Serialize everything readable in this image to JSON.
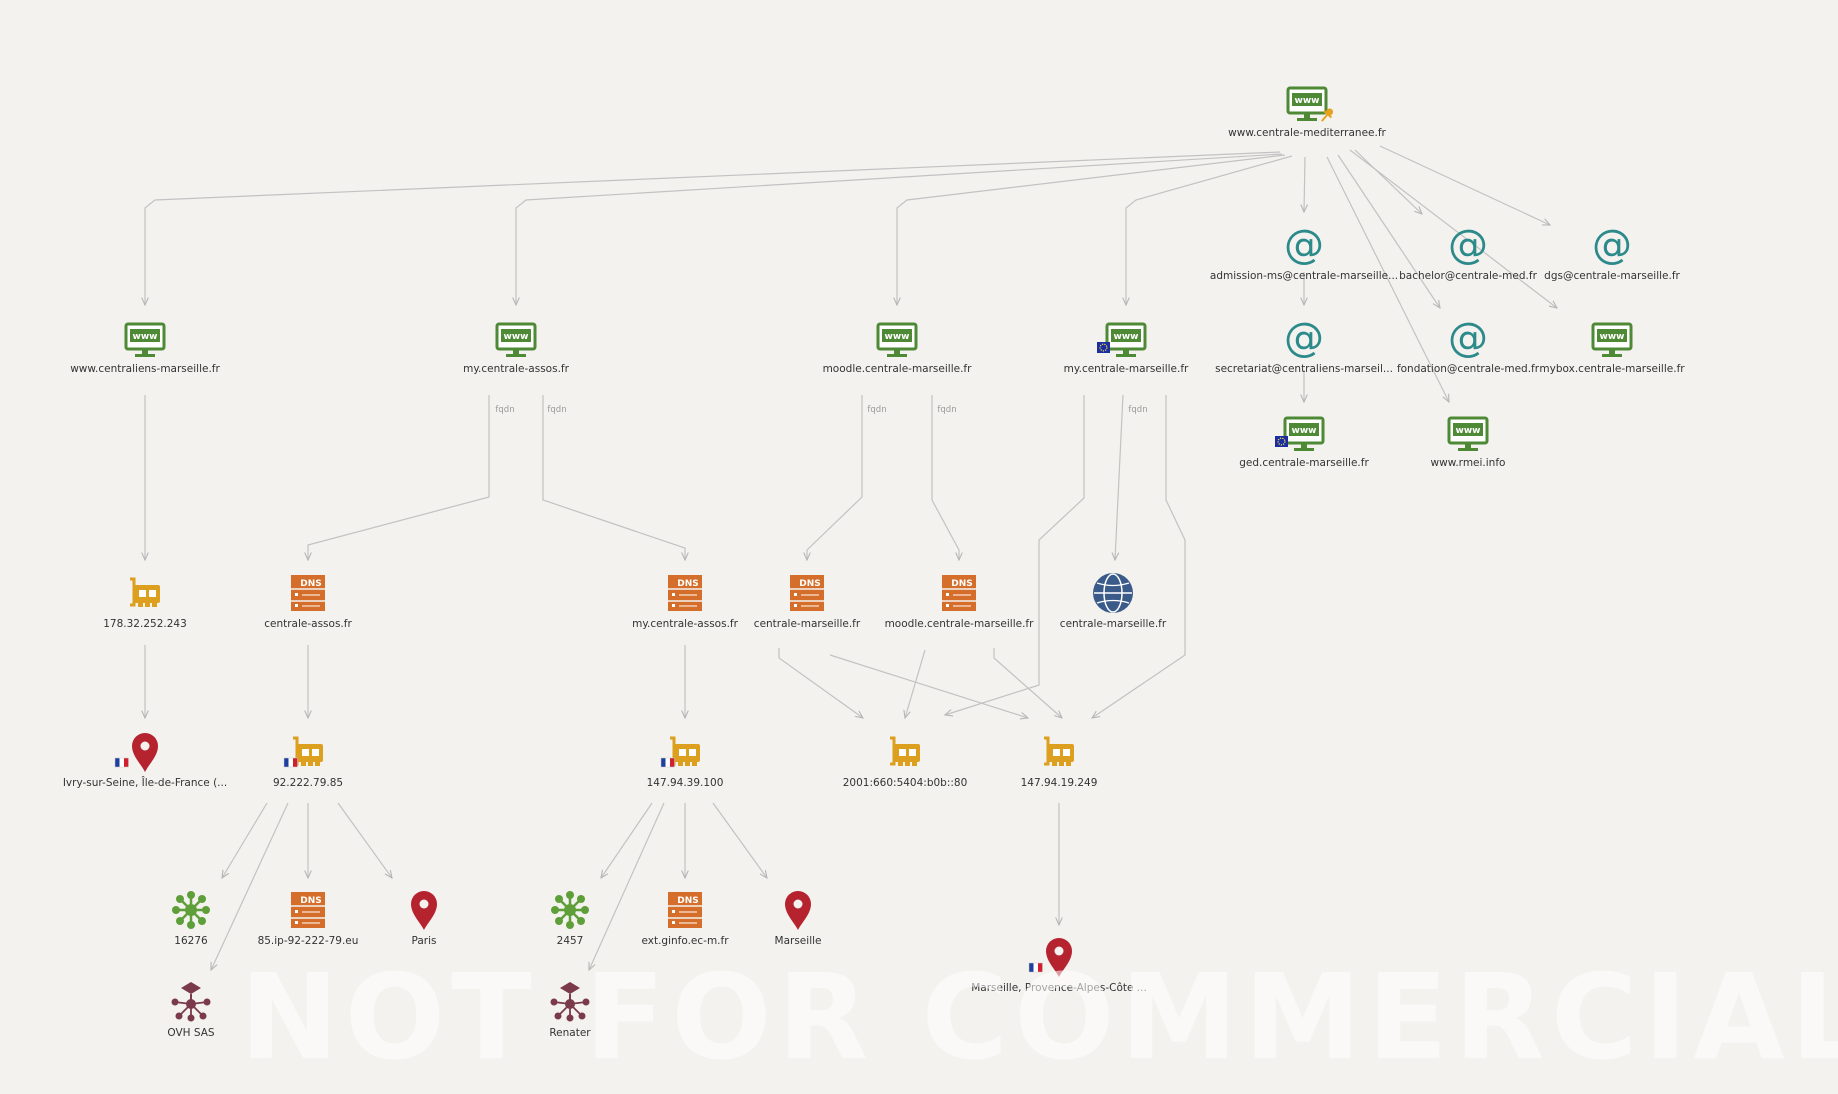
{
  "watermark": "NOT FOR COMMERCIAL USE",
  "colors": {
    "website": "#4e8a35",
    "email": "#2c8a8a",
    "dns": "#d46e2a",
    "ip": "#dd9f1e",
    "location": "#b5232f",
    "asn": "#5f9f3a",
    "org": "#7a3a4a",
    "domain": "#3a5a8a",
    "edge": "#c2c2c2"
  },
  "edge_label": "fqdn",
  "nodes": [
    {
      "id": "root",
      "type": "website",
      "label": "www.centrale-mediterranee.fr",
      "pin": true
    },
    {
      "id": "w1",
      "type": "website",
      "label": "www.centraliens-marseille.fr"
    },
    {
      "id": "w2",
      "type": "website",
      "label": "my.centrale-assos.fr"
    },
    {
      "id": "w3",
      "type": "website",
      "label": "moodle.centrale-marseille.fr"
    },
    {
      "id": "w4",
      "type": "website",
      "label": "my.centrale-marseille.fr",
      "flag": "eu"
    },
    {
      "id": "e1",
      "type": "email",
      "label": "admission-ms@centrale-marseille..."
    },
    {
      "id": "e2",
      "type": "email",
      "label": "bachelor@centrale-med.fr"
    },
    {
      "id": "e3",
      "type": "email",
      "label": "dgs@centrale-marseille.fr"
    },
    {
      "id": "e4",
      "type": "email",
      "label": "secretariat@centraliens-marseil..."
    },
    {
      "id": "e5",
      "type": "email",
      "label": "fondation@centrale-med.fr"
    },
    {
      "id": "w5",
      "type": "website",
      "label": "mybox.centrale-marseille.fr"
    },
    {
      "id": "w6",
      "type": "website",
      "label": "ged.centrale-marseille.fr",
      "flag": "eu"
    },
    {
      "id": "w7",
      "type": "website",
      "label": "www.rmei.info"
    },
    {
      "id": "ip1",
      "type": "ip",
      "label": "178.32.252.243"
    },
    {
      "id": "d1",
      "type": "dns",
      "label": "centrale-assos.fr"
    },
    {
      "id": "d2",
      "type": "dns",
      "label": "my.centrale-assos.fr"
    },
    {
      "id": "d3",
      "type": "dns",
      "label": "centrale-marseille.fr"
    },
    {
      "id": "d4",
      "type": "dns",
      "label": "moodle.centrale-marseille.fr"
    },
    {
      "id": "dom1",
      "type": "domain",
      "label": "centrale-marseille.fr"
    },
    {
      "id": "loc1",
      "type": "location",
      "label": "Ivry-sur-Seine, Île-de-France (...",
      "flag": "fr"
    },
    {
      "id": "ip2",
      "type": "ip",
      "label": "92.222.79.85",
      "flag": "fr"
    },
    {
      "id": "ip3",
      "type": "ip",
      "label": "147.94.39.100",
      "flag": "fr"
    },
    {
      "id": "ip4",
      "type": "ip",
      "label": "2001:660:5404:b0b::80"
    },
    {
      "id": "ip5",
      "type": "ip",
      "label": "147.94.19.249"
    },
    {
      "id": "as1",
      "type": "asn",
      "label": "16276"
    },
    {
      "id": "d5",
      "type": "dns",
      "label": "85.ip-92-222-79.eu"
    },
    {
      "id": "loc2",
      "type": "location",
      "label": "Paris"
    },
    {
      "id": "as2",
      "type": "asn",
      "label": "2457"
    },
    {
      "id": "d6",
      "type": "dns",
      "label": "ext.ginfo.ec-m.fr"
    },
    {
      "id": "loc3",
      "type": "location",
      "label": "Marseille"
    },
    {
      "id": "loc4",
      "type": "location",
      "label": "Marseille, Provence-Alpes-Côte ...",
      "flag": "fr"
    },
    {
      "id": "org1",
      "type": "org",
      "label": "OVH SAS"
    },
    {
      "id": "org2",
      "type": "org",
      "label": "Renater"
    }
  ],
  "edges": [
    {
      "from": "root",
      "to": "w1"
    },
    {
      "from": "root",
      "to": "w2"
    },
    {
      "from": "root",
      "to": "w3"
    },
    {
      "from": "root",
      "to": "w4"
    },
    {
      "from": "root",
      "to": "e1"
    },
    {
      "from": "root",
      "to": "e2"
    },
    {
      "from": "root",
      "to": "e3"
    },
    {
      "from": "root",
      "to": "e5"
    },
    {
      "from": "root",
      "to": "w5"
    },
    {
      "from": "root",
      "to": "w7"
    },
    {
      "from": "e1",
      "to": "e4"
    },
    {
      "from": "e4",
      "to": "w6"
    },
    {
      "from": "w1",
      "to": "ip1"
    },
    {
      "from": "w2",
      "to": "d1",
      "label": true
    },
    {
      "from": "w2",
      "to": "d2",
      "label": true
    },
    {
      "from": "w3",
      "to": "d3",
      "label": true
    },
    {
      "from": "w3",
      "to": "d4",
      "label": true
    },
    {
      "from": "w4",
      "to": "dom1",
      "label": true
    },
    {
      "from": "w4",
      "to": "ip4"
    },
    {
      "from": "w4",
      "to": "ip5"
    },
    {
      "from": "ip1",
      "to": "loc1"
    },
    {
      "from": "d1",
      "to": "ip2"
    },
    {
      "from": "d2",
      "to": "ip3"
    },
    {
      "from": "d3",
      "to": "ip4"
    },
    {
      "from": "d3",
      "to": "ip5"
    },
    {
      "from": "d4",
      "to": "ip4"
    },
    {
      "from": "d4",
      "to": "ip5"
    },
    {
      "from": "ip2",
      "to": "as1"
    },
    {
      "from": "ip2",
      "to": "d5"
    },
    {
      "from": "ip2",
      "to": "loc2"
    },
    {
      "from": "ip2",
      "to": "org1"
    },
    {
      "from": "ip3",
      "to": "as2"
    },
    {
      "from": "ip3",
      "to": "d6"
    },
    {
      "from": "ip3",
      "to": "loc3"
    },
    {
      "from": "ip3",
      "to": "org2"
    },
    {
      "from": "ip5",
      "to": "loc4"
    }
  ]
}
